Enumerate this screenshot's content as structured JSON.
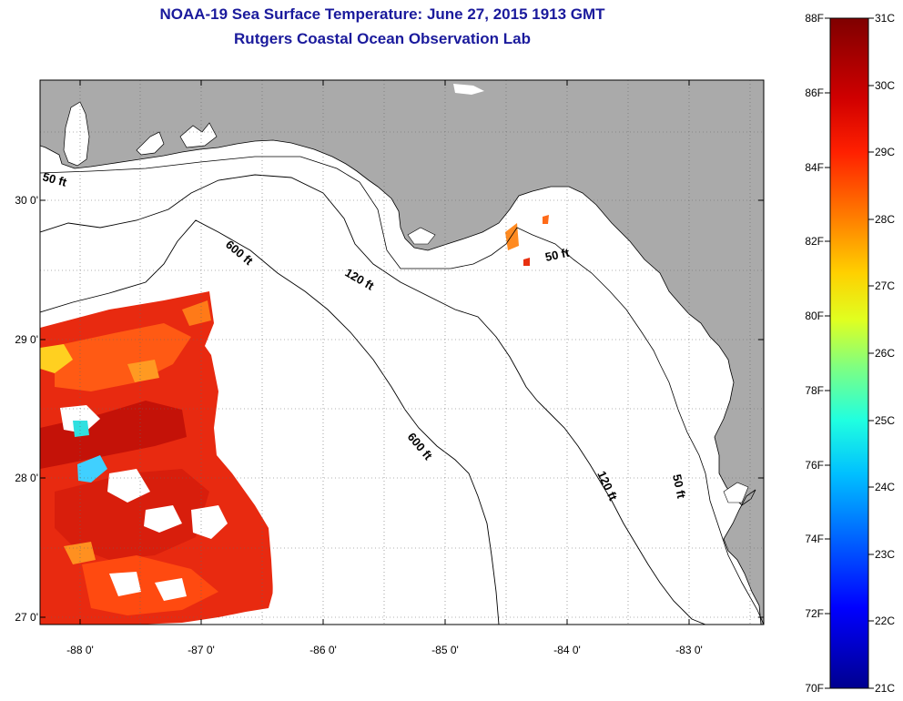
{
  "header": {
    "title": "NOAA-19 Sea Surface Temperature:  June 27, 2015 1913 GMT",
    "subtitle": "Rutgers Coastal Ocean Observation Lab"
  },
  "map": {
    "lat_labels": [
      "30 0'",
      "29 0'",
      "28 0'",
      "27 0'"
    ],
    "lon_labels": [
      "-88 0'",
      "-87 0'",
      "-86 0'",
      "-85 0'",
      "-84 0'",
      "-83 0'"
    ],
    "contours": [
      "50 ft",
      "600 ft",
      "120 ft",
      "50 ft",
      "600 ft",
      "120 ft",
      "50 ft"
    ]
  },
  "colorbar": {
    "f_labels": [
      "88F",
      "86F",
      "84F",
      "82F",
      "80F",
      "78F",
      "76F",
      "74F",
      "72F",
      "70F"
    ],
    "c_labels": [
      "31C",
      "30C",
      "29C",
      "28C",
      "27C",
      "26C",
      "25C",
      "24C",
      "23C",
      "22C",
      "21C"
    ],
    "colors": [
      "#7f0000",
      "#ff0000",
      "#ff8000",
      "#ffff00",
      "#80ff80",
      "#00ffff",
      "#0080ff",
      "#0000ff",
      "#00008f"
    ]
  }
}
